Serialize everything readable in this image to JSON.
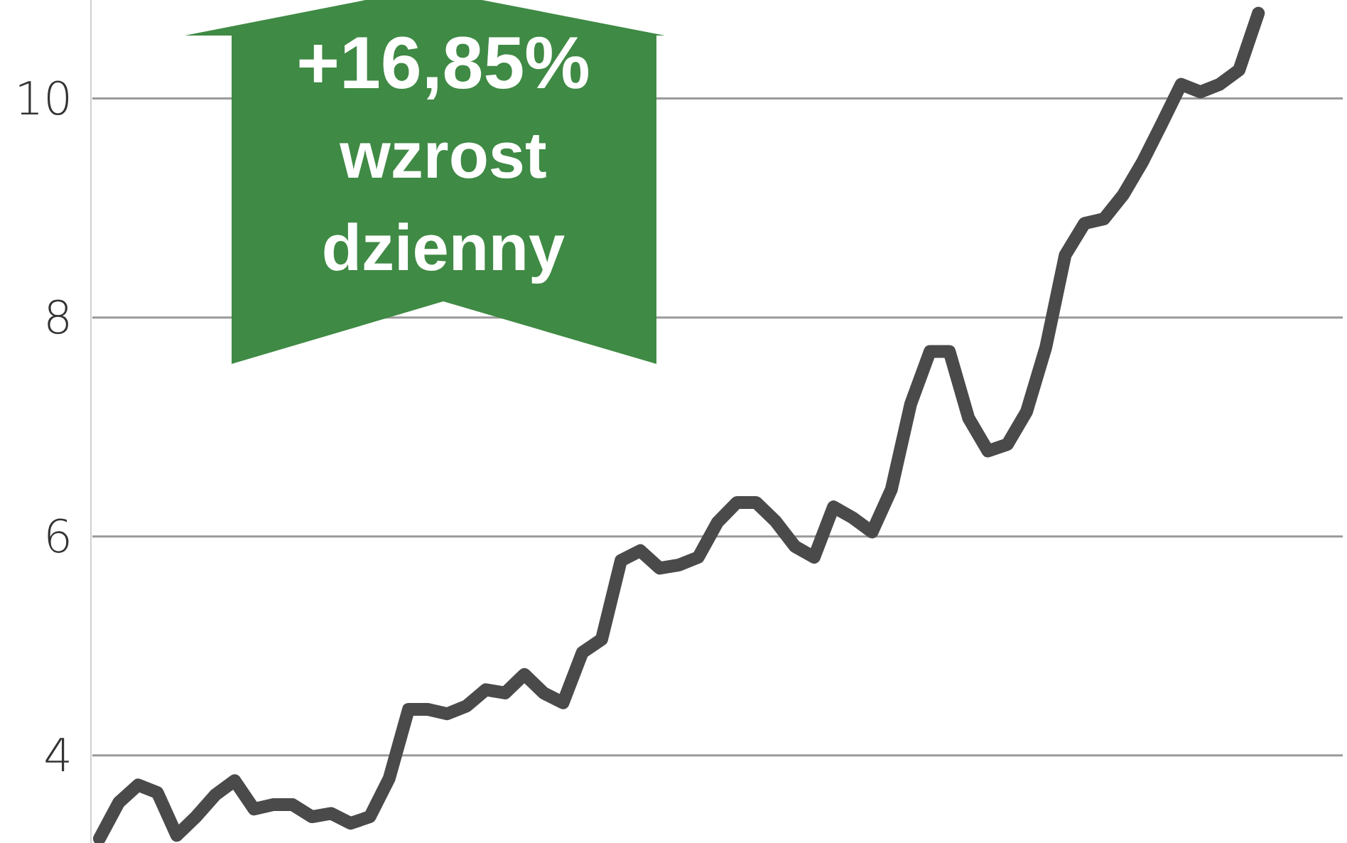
{
  "chart_data": {
    "type": "line",
    "categories": [
      null,
      null,
      null,
      null,
      null,
      null,
      null,
      null,
      null,
      null,
      null,
      null,
      null,
      null,
      null,
      null,
      null,
      null,
      null,
      null,
      null,
      null,
      null,
      null,
      null,
      null,
      null,
      null,
      null,
      null,
      null,
      null,
      null,
      null,
      null,
      null,
      null,
      null,
      null,
      null,
      null,
      null,
      null,
      null,
      null,
      null,
      null,
      null,
      null,
      null,
      null,
      null,
      null,
      null,
      null,
      null,
      null,
      null,
      null,
      null,
      null,
      null,
      null,
      null,
      null
    ],
    "series": [
      {
        "color": "#4a4a4a",
        "values": [
          3.24,
          3.57,
          3.73,
          3.66,
          3.27,
          3.44,
          3.64,
          3.77,
          3.51,
          3.55,
          3.55,
          3.44,
          3.47,
          3.38,
          3.44,
          3.79,
          4.42,
          4.42,
          4.38,
          4.45,
          4.6,
          4.57,
          4.74,
          4.57,
          4.48,
          4.94,
          5.06,
          5.78,
          5.87,
          5.71,
          5.74,
          5.81,
          6.13,
          6.31,
          6.31,
          6.14,
          5.91,
          5.81,
          6.27,
          6.17,
          6.04,
          6.43,
          7.21,
          7.69,
          7.69,
          7.08,
          6.78,
          6.84,
          7.14,
          7.73,
          8.57,
          8.86,
          8.9,
          9.12,
          9.42,
          9.77,
          10.13,
          10.06,
          10.13,
          10.26,
          10.78,
          null,
          null,
          null,
          null
        ]
      }
    ],
    "ylim": [
      3.2,
      10.9
    ],
    "yticks": [
      4,
      6,
      8,
      10
    ],
    "grid": "y",
    "tick_labels": "y",
    "line_style": "solid",
    "annotations": [
      "+16,85%",
      "wzrost dzienny"
    ]
  }
}
